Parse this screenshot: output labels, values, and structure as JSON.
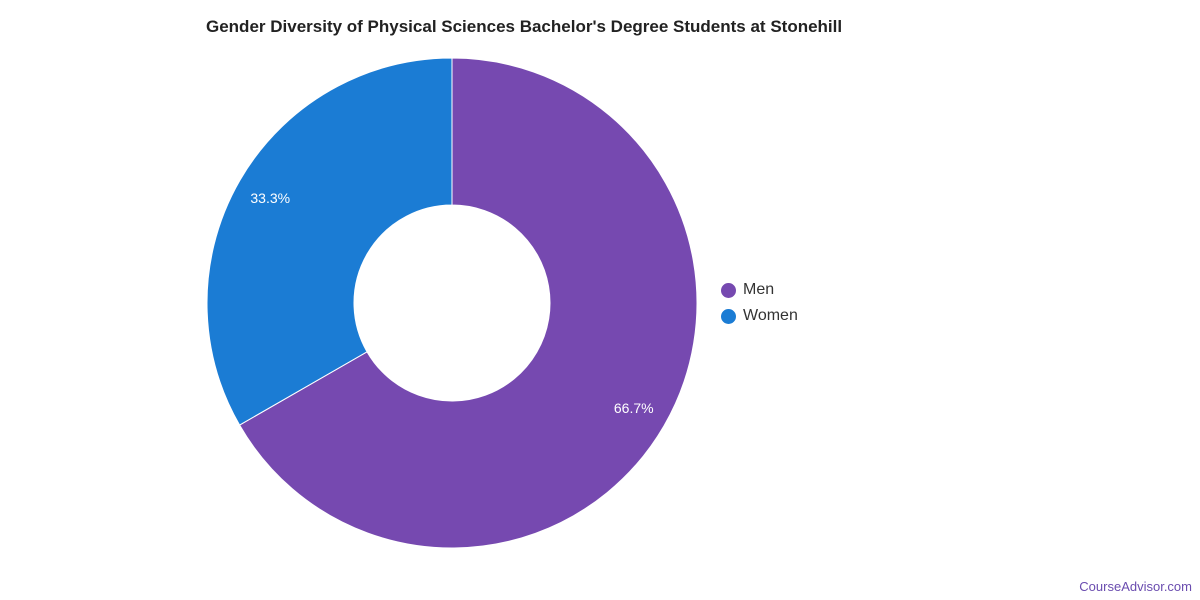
{
  "chart_data": {
    "type": "pie",
    "variant": "donut",
    "title": "Gender Diversity of Physical Sciences Bachelor's Degree Students at Stonehill",
    "categories": [
      "Men",
      "Women"
    ],
    "values": [
      66.7,
      33.3
    ],
    "labels": [
      "66.7%",
      "33.3%"
    ],
    "colors": [
      "#7649b0",
      "#1b7cd4"
    ],
    "legend_placement": "right"
  },
  "watermark": "CourseAdvisor.com"
}
